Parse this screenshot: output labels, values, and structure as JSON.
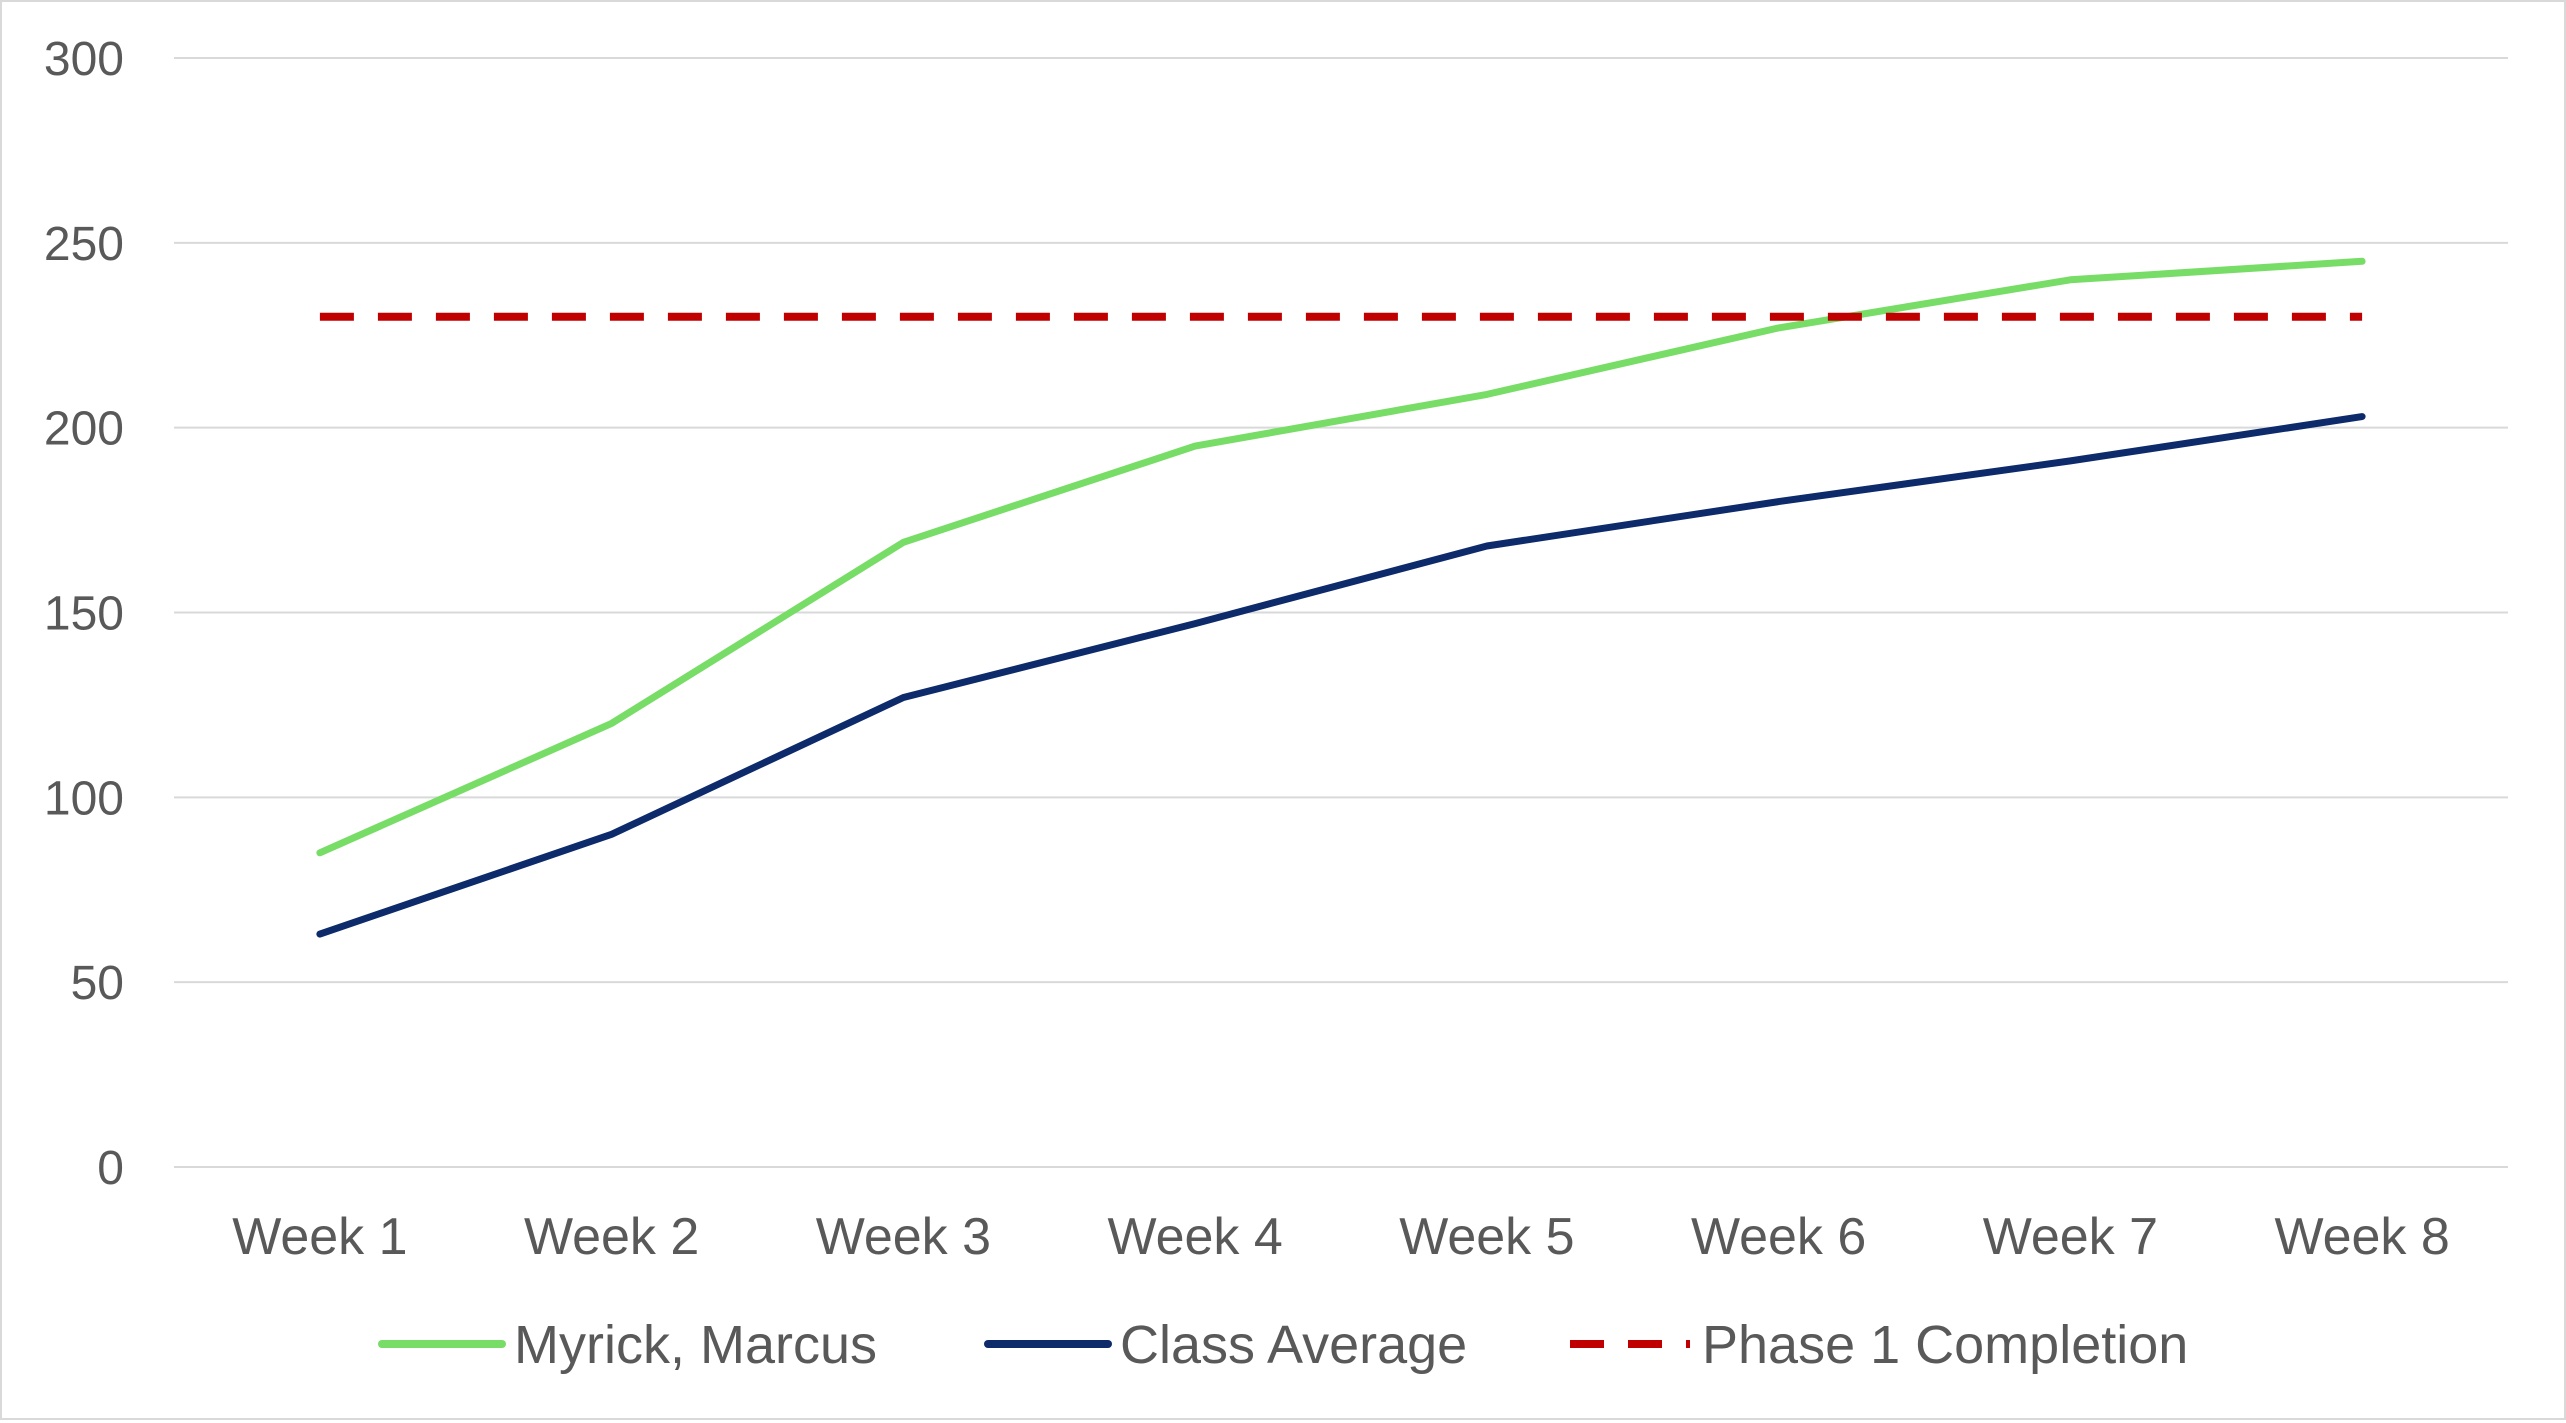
{
  "chart_data": {
    "type": "line",
    "categories": [
      "Week 1",
      "Week 2",
      "Week 3",
      "Week 4",
      "Week 5",
      "Week 6",
      "Week 7",
      "Week 8"
    ],
    "ylim": [
      0,
      300
    ],
    "yticks": [
      0,
      50,
      100,
      150,
      200,
      250,
      300
    ],
    "ytick_labels": [
      "0",
      "50",
      "100",
      "150",
      "200",
      "250",
      "300"
    ],
    "grid": true,
    "legend_position": "bottom",
    "series": [
      {
        "name": "Myrick, Marcus",
        "values": [
          85,
          120,
          169,
          195,
          209,
          227,
          240,
          245
        ],
        "color": "#77dd66",
        "style": "solid"
      },
      {
        "name": "Class Average",
        "values": [
          63,
          90,
          127,
          147,
          168,
          180,
          191,
          203
        ],
        "color": "#0d2a6b",
        "style": "solid"
      },
      {
        "name": "Phase 1 Completion",
        "values": [
          230,
          230,
          230,
          230,
          230,
          230,
          230,
          230
        ],
        "color": "#c00000",
        "style": "dashed"
      }
    ],
    "colors": {
      "grid": "#d9d9d9",
      "axis_text": "#595959",
      "border": "#d9d9d9"
    }
  }
}
